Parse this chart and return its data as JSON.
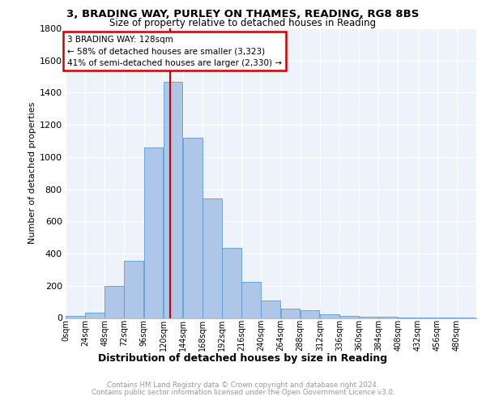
{
  "title1": "3, BRADING WAY, PURLEY ON THAMES, READING, RG8 8BS",
  "title2": "Size of property relative to detached houses in Reading",
  "xlabel": "Distribution of detached houses by size in Reading",
  "ylabel": "Number of detached properties",
  "categories": [
    "0sqm",
    "24sqm",
    "48sqm",
    "72sqm",
    "96sqm",
    "120sqm",
    "144sqm",
    "168sqm",
    "192sqm",
    "216sqm",
    "240sqm",
    "264sqm",
    "288sqm",
    "312sqm",
    "336sqm",
    "360sqm",
    "384sqm",
    "408sqm",
    "432sqm",
    "456sqm",
    "480sqm"
  ],
  "values": [
    15,
    35,
    200,
    355,
    1060,
    1470,
    1120,
    745,
    435,
    225,
    110,
    60,
    48,
    22,
    15,
    10,
    8,
    5,
    3,
    2,
    2
  ],
  "bar_color": "#aec6e8",
  "bar_edge_color": "#5b9bd5",
  "property_label": "3 BRADING WAY: 128sqm",
  "annotation_line1": "← 58% of detached houses are smaller (3,323)",
  "annotation_line2": "41% of semi-detached houses are larger (2,330) →",
  "vline_color": "#cc0000",
  "vline_x": 128,
  "annotation_box_color": "#ffffff",
  "annotation_box_edge": "#cc0000",
  "background_color": "#eef2fb",
  "grid_color": "#ffffff",
  "footer_line1": "Contains HM Land Registry data © Crown copyright and database right 2024.",
  "footer_line2": "Contains public sector information licensed under the Open Government Licence v3.0.",
  "ylim": [
    0,
    1800
  ],
  "bin_width": 24
}
